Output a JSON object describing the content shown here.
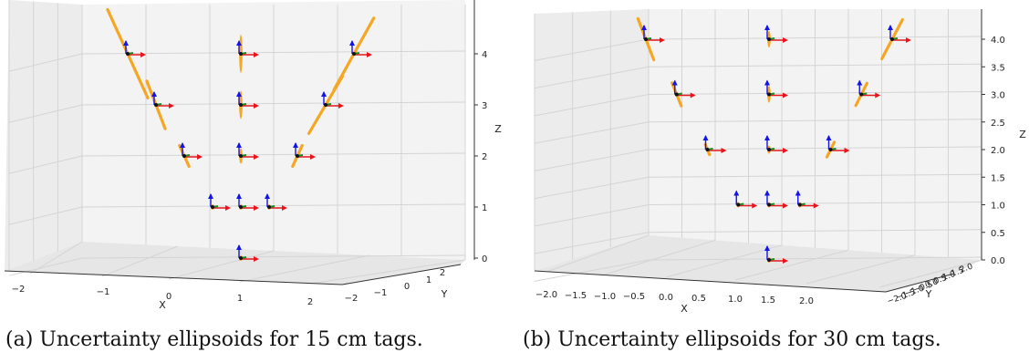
{
  "charts": [
    {
      "caption": "(a) Uncertainty ellipsoids for 15 cm tags.",
      "axis_labels": {
        "x": "X",
        "y": "Y",
        "z": "Z"
      },
      "x_ticks": [
        "−2",
        "−1",
        "0",
        "1",
        "2"
      ],
      "y_ticks": [
        "−2",
        "−1",
        "0",
        "1",
        "2"
      ],
      "z_ticks": [
        "0",
        "1",
        "2",
        "3",
        "4"
      ]
    },
    {
      "caption": "(b) Uncertainty ellipsoids for 30 cm tags.",
      "axis_labels": {
        "x": "X",
        "y": "Y",
        "z": "Z"
      },
      "x_ticks": [
        "−2.0",
        "−1.5",
        "−1.0",
        "−0.5",
        "0.0",
        "0.5",
        "1.0",
        "1.5",
        "2.0"
      ],
      "y_ticks": [
        "−2.0",
        "−1.5",
        "−1.0",
        "−0.5",
        "0.0",
        "0.5",
        "1.0",
        "1.5",
        "2.0"
      ],
      "z_ticks": [
        "0.0",
        "0.5",
        "1.0",
        "1.5",
        "2.0",
        "2.5",
        "3.0",
        "3.5",
        "4.0"
      ]
    }
  ],
  "chart_data": [
    {
      "type": "scatter",
      "title": "",
      "xlabel": "X",
      "ylabel": "Y",
      "zlabel": "Z",
      "xlim": [
        -2.5,
        2.5
      ],
      "ylim": [
        -2,
        2
      ],
      "zlim": [
        0,
        4.6
      ],
      "grid": true,
      "marker": "coordinate-frame triad (red x, green y, blue z) with orange uncertainty ellipsoid",
      "points": [
        {
          "x": 0,
          "y": 0,
          "z": 0,
          "ellipsoid_len": 0.05,
          "ellipsoid_slope": 0
        },
        {
          "x": -0.5,
          "y": 0,
          "z": 1,
          "ellipsoid_len": 0.08,
          "ellipsoid_slope": 0
        },
        {
          "x": 0,
          "y": 0,
          "z": 1,
          "ellipsoid_len": 0.08,
          "ellipsoid_slope": 0
        },
        {
          "x": 0.5,
          "y": 0,
          "z": 1,
          "ellipsoid_len": 0.08,
          "ellipsoid_slope": 0
        },
        {
          "x": -1,
          "y": 0,
          "z": 2,
          "ellipsoid_len": 0.45,
          "ellipsoid_slope": -2.2
        },
        {
          "x": 0,
          "y": 0,
          "z": 2,
          "ellipsoid_len": 0.3,
          "ellipsoid_slope": 0
        },
        {
          "x": 1,
          "y": 0,
          "z": 2,
          "ellipsoid_len": 0.45,
          "ellipsoid_slope": 2.2
        },
        {
          "x": -1.5,
          "y": 0,
          "z": 3,
          "ellipsoid_len": 1.0,
          "ellipsoid_slope": -2.6
        },
        {
          "x": 0,
          "y": 0,
          "z": 3,
          "ellipsoid_len": 0.55,
          "ellipsoid_slope": 0
        },
        {
          "x": 1.5,
          "y": 0,
          "z": 3,
          "ellipsoid_len": 1.3,
          "ellipsoid_slope": 1.7
        },
        {
          "x": -2,
          "y": 0,
          "z": 4,
          "ellipsoid_len": 1.9,
          "ellipsoid_slope": -2.2
        },
        {
          "x": 0,
          "y": 0,
          "z": 4,
          "ellipsoid_len": 0.75,
          "ellipsoid_slope": 0
        },
        {
          "x": 2,
          "y": 0,
          "z": 4,
          "ellipsoid_len": 1.6,
          "ellipsoid_slope": 1.8
        }
      ]
    },
    {
      "type": "scatter",
      "title": "",
      "xlabel": "X",
      "ylabel": "Y",
      "zlabel": "Z",
      "xlim": [
        -2.2,
        2.2
      ],
      "ylim": [
        -2,
        2
      ],
      "zlim": [
        0,
        4.4
      ],
      "grid": true,
      "marker": "coordinate-frame triad (red x, green y, blue z) with orange uncertainty ellipsoid",
      "points": [
        {
          "x": 0,
          "y": 0,
          "z": 0,
          "ellipsoid_len": 0.05,
          "ellipsoid_slope": 0
        },
        {
          "x": -0.5,
          "y": 0,
          "z": 1,
          "ellipsoid_len": 0.05,
          "ellipsoid_slope": 0
        },
        {
          "x": 0,
          "y": 0,
          "z": 1,
          "ellipsoid_len": 0.05,
          "ellipsoid_slope": 0
        },
        {
          "x": 0.5,
          "y": 0,
          "z": 1,
          "ellipsoid_len": 0.05,
          "ellipsoid_slope": 0
        },
        {
          "x": -1,
          "y": 0,
          "z": 2,
          "ellipsoid_len": 0.2,
          "ellipsoid_slope": -2.5
        },
        {
          "x": 0,
          "y": 0,
          "z": 2,
          "ellipsoid_len": 0.15,
          "ellipsoid_slope": 0
        },
        {
          "x": 1,
          "y": 0,
          "z": 2,
          "ellipsoid_len": 0.3,
          "ellipsoid_slope": 2.0
        },
        {
          "x": -1.5,
          "y": 0,
          "z": 3,
          "ellipsoid_len": 0.45,
          "ellipsoid_slope": -2.5
        },
        {
          "x": 0,
          "y": 0,
          "z": 3,
          "ellipsoid_len": 0.3,
          "ellipsoid_slope": 0
        },
        {
          "x": 1.5,
          "y": 0,
          "z": 3,
          "ellipsoid_len": 0.45,
          "ellipsoid_slope": 2.0
        },
        {
          "x": -2,
          "y": 0,
          "z": 4,
          "ellipsoid_len": 0.8,
          "ellipsoid_slope": -2.6
        },
        {
          "x": 0,
          "y": 0,
          "z": 4,
          "ellipsoid_len": 0.3,
          "ellipsoid_slope": 0
        },
        {
          "x": 2,
          "y": 0,
          "z": 4,
          "ellipsoid_len": 0.8,
          "ellipsoid_slope": 1.9
        }
      ]
    }
  ],
  "colors": {
    "ellipsoid": "#f5a623",
    "x_axis_arrow": "#e8141c",
    "y_axis_arrow": "#1a8a1a",
    "z_axis_arrow": "#1414e8",
    "pane": "#f0f0f0",
    "grid": "#d4d4d4"
  }
}
